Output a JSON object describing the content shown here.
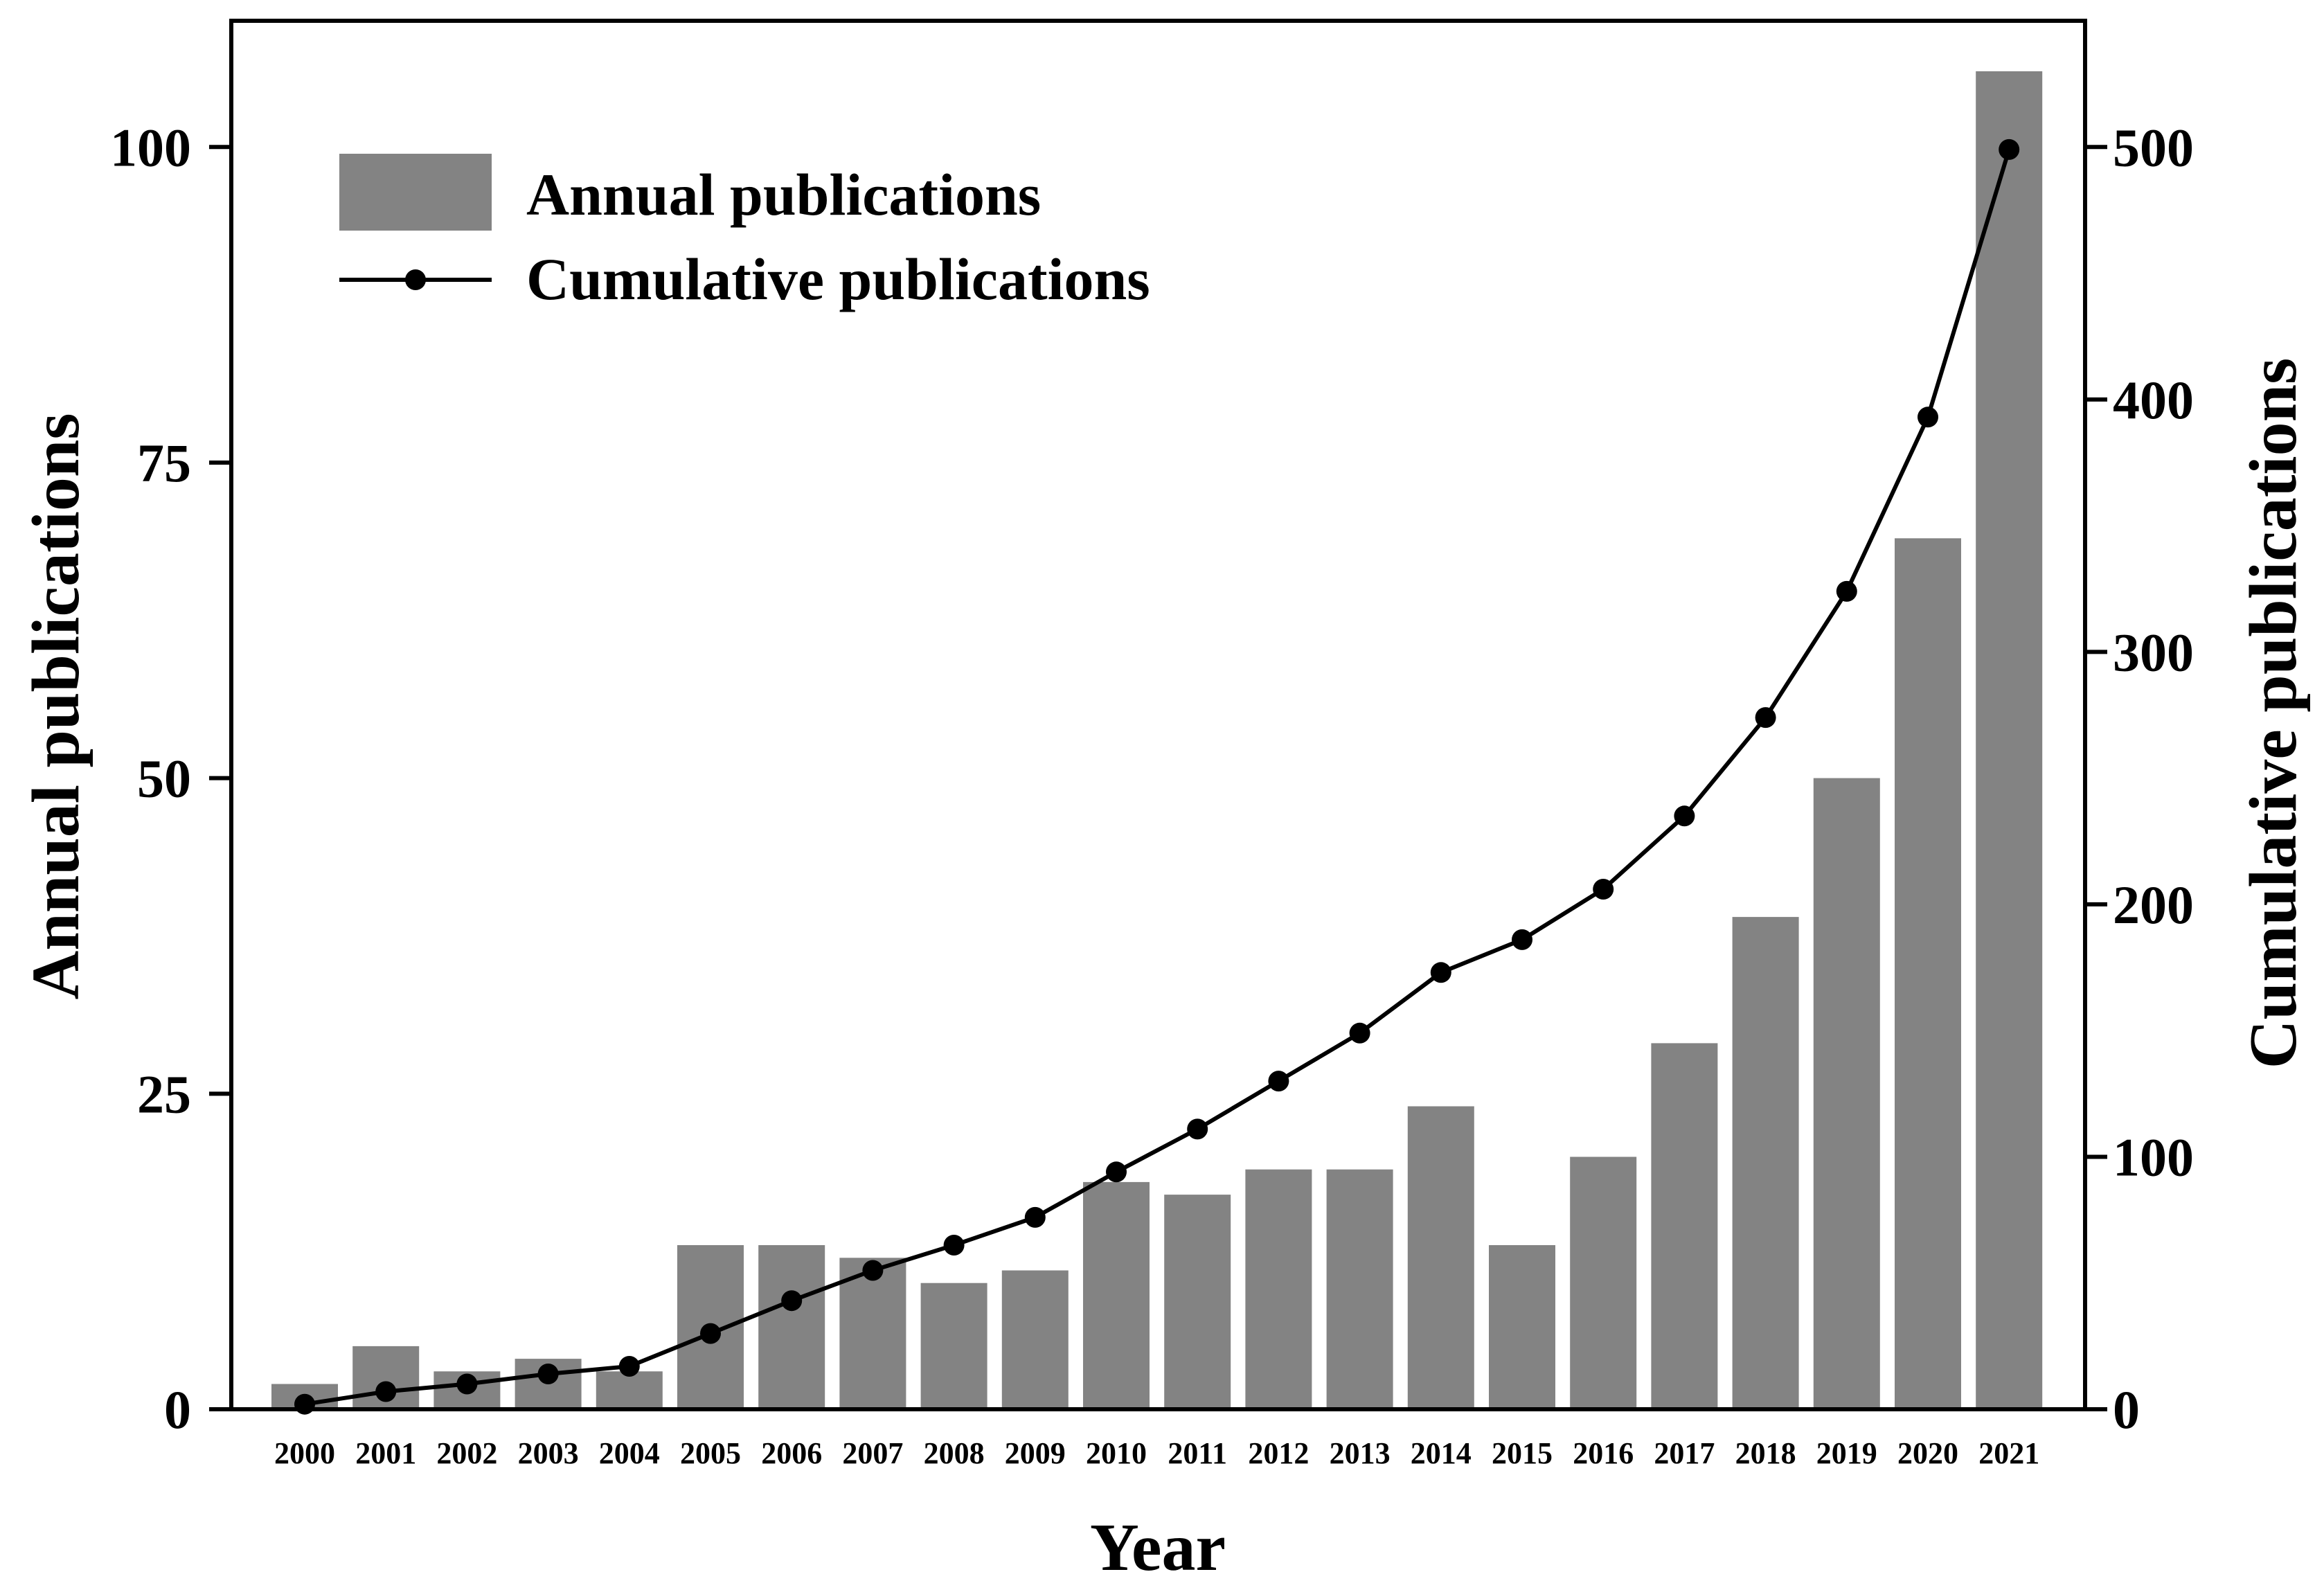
{
  "chart_data": {
    "type": "bar",
    "title": "",
    "xlabel": "Year",
    "ylabel": "Annual publications",
    "y2label": "Cumulative publications",
    "categories": [
      "2000",
      "2001",
      "2002",
      "2003",
      "2004",
      "2005",
      "2006",
      "2007",
      "2008",
      "2009",
      "2010",
      "2011",
      "2012",
      "2013",
      "2014",
      "2015",
      "2016",
      "2017",
      "2018",
      "2019",
      "2020",
      "2021"
    ],
    "series": [
      {
        "name": "Annual publications",
        "type": "bar",
        "axis": "left",
        "color": "#838383",
        "values": [
          2,
          5,
          3,
          4,
          3,
          13,
          13,
          12,
          10,
          11,
          18,
          17,
          19,
          19,
          24,
          13,
          20,
          29,
          39,
          50,
          69,
          106
        ]
      },
      {
        "name": "Cumulative publications",
        "type": "line",
        "axis": "right",
        "color": "#000000",
        "marker": "circle",
        "values": [
          2,
          7,
          10,
          14,
          17,
          30,
          43,
          55,
          65,
          76,
          94,
          111,
          130,
          149,
          173,
          186,
          206,
          235,
          274,
          324,
          393,
          499
        ]
      }
    ],
    "ylim": [
      0,
      110
    ],
    "y2lim": [
      0,
      550
    ],
    "yticks": [
      0,
      25,
      50,
      75,
      100
    ],
    "y2ticks": [
      0,
      100,
      200,
      300,
      400,
      500
    ],
    "legend": {
      "position": "top-left",
      "entries": [
        "Annual publications",
        "Cumulative publications"
      ]
    },
    "grid": false
  }
}
